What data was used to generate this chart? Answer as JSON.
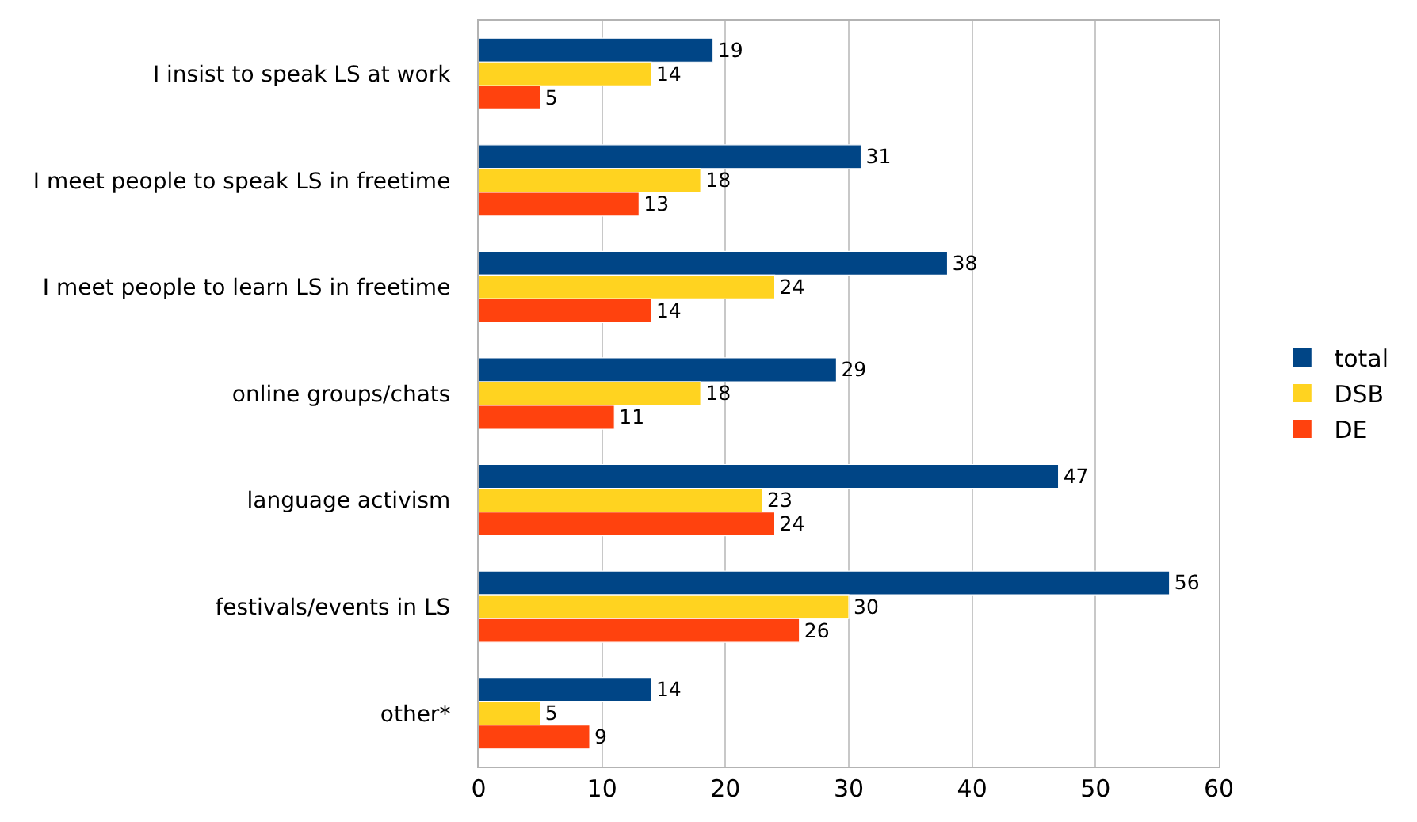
{
  "chart_data": {
    "type": "bar",
    "orientation": "horizontal",
    "categories": [
      "I insist to speak LS at work",
      "I meet people to speak LS in freetime",
      "I meet people to learn LS in freetime",
      "online groups/chats",
      "language activism",
      "festivals/events in LS",
      "other*"
    ],
    "series": [
      {
        "name": "total",
        "color": "#004586",
        "values": [
          19,
          31,
          38,
          29,
          47,
          56,
          14
        ]
      },
      {
        "name": "DSB",
        "color": "#ffd320",
        "values": [
          14,
          18,
          24,
          18,
          23,
          30,
          5
        ]
      },
      {
        "name": "DE",
        "color": "#ff420e",
        "values": [
          5,
          13,
          14,
          11,
          24,
          26,
          9
        ]
      }
    ],
    "xlim": [
      0,
      60
    ],
    "xticks": [
      0,
      10,
      20,
      30,
      40,
      50,
      60
    ],
    "grid": "x",
    "legend": "right",
    "data_labels": true
  }
}
